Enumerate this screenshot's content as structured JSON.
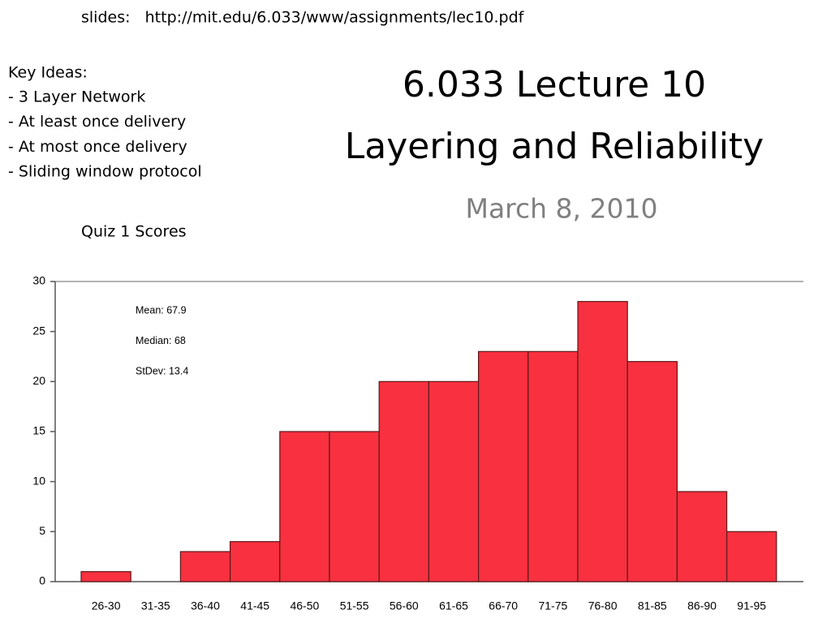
{
  "slides_link": "slides:   http://mit.edu/6.033/www/assignments/lec10.pdf",
  "key_ideas": {
    "heading": "Key Ideas:",
    "items": [
      "- 3 Layer Network",
      "- At least once delivery",
      "- At most once delivery",
      "- Sliding window protocol"
    ]
  },
  "title_lines": [
    "6.033 Lecture 10",
    "Layering and Reliability"
  ],
  "date": "March 8, 2010",
  "chart_data": {
    "type": "bar",
    "title": "Quiz 1 Scores",
    "categories": [
      "26-30",
      "31-35",
      "36-40",
      "41-45",
      "46-50",
      "51-55",
      "56-60",
      "61-65",
      "66-70",
      "71-75",
      "76-80",
      "81-85",
      "86-90",
      "91-95"
    ],
    "values": [
      1,
      0,
      3,
      4,
      15,
      15,
      20,
      20,
      23,
      23,
      28,
      22,
      9,
      5
    ],
    "color": "#f8303f",
    "ylim": [
      0,
      30
    ],
    "yticks": [
      0,
      5,
      10,
      15,
      20,
      25,
      30
    ],
    "annotations": [
      "Mean: 67.9",
      "Median: 68",
      "StDev: 13.4"
    ]
  }
}
